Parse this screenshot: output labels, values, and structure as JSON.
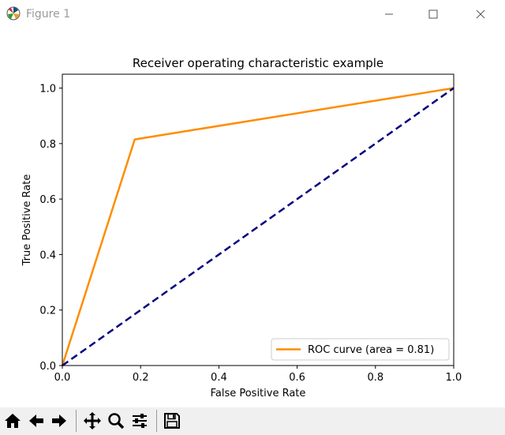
{
  "window": {
    "title": "Figure 1",
    "icons": [
      "matplotlib-logo-icon",
      "minimize-icon",
      "maximize-icon",
      "close-icon"
    ]
  },
  "chart_data": {
    "type": "line",
    "title": "Receiver operating characteristic example",
    "xlabel": "False Positive Rate",
    "ylabel": "True Positive Rate",
    "xlim": [
      0.0,
      1.0
    ],
    "ylim": [
      0.0,
      1.05
    ],
    "xticks": [
      "0.0",
      "0.2",
      "0.4",
      "0.6",
      "0.8",
      "1.0"
    ],
    "yticks": [
      "0.0",
      "0.2",
      "0.4",
      "0.6",
      "0.8",
      "1.0"
    ],
    "grid": false,
    "legend_position": "lower-right",
    "series": [
      {
        "name": "ROC curve (area = 0.81)",
        "color": "#ff8c00",
        "style": "solid",
        "x": [
          0.0,
          0.185,
          1.0
        ],
        "y": [
          0.0,
          0.815,
          1.0
        ]
      },
      {
        "color": "#000080",
        "style": "dashed",
        "x": [
          0.0,
          1.0
        ],
        "y": [
          0.0,
          1.0
        ]
      }
    ]
  },
  "toolbar": {
    "buttons": [
      "home-icon",
      "back-icon",
      "forward-icon",
      "pan-icon",
      "zoom-icon",
      "configure-subplots-icon",
      "save-icon"
    ]
  }
}
